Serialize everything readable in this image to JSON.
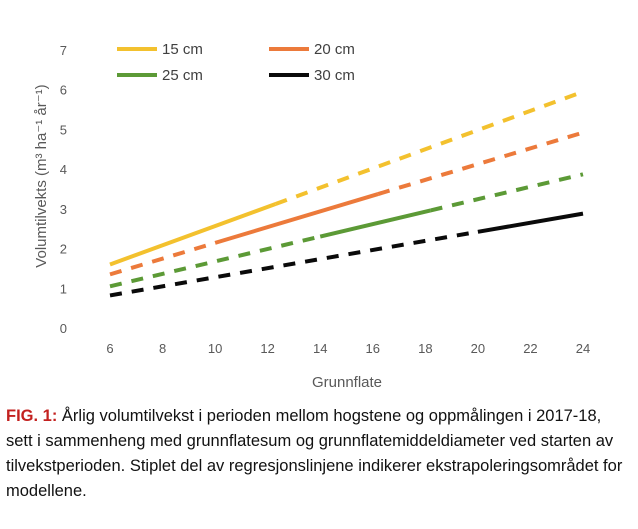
{
  "chart_data": {
    "type": "line",
    "xlabel": "Grunnflate",
    "ylabel": "Volumtilvekts (m³ ha⁻¹ år⁻¹)",
    "xlim": [
      6,
      24
    ],
    "ylim": [
      0,
      7
    ],
    "xticks": [
      6,
      8,
      10,
      12,
      14,
      16,
      18,
      20,
      22,
      24
    ],
    "yticks": [
      0,
      1,
      2,
      3,
      4,
      5,
      6,
      7
    ],
    "grid": false,
    "legend_position": "top",
    "series": [
      {
        "name": "15 cm",
        "color": "#f3c12e",
        "x": [
          6,
          24
        ],
        "y": [
          1.6,
          5.95
        ],
        "observed": [
          6,
          12.3
        ]
      },
      {
        "name": "20 cm",
        "color": "#ec7a3b",
        "x": [
          6,
          24
        ],
        "y": [
          1.35,
          4.92
        ],
        "observed": [
          10,
          16.2
        ]
      },
      {
        "name": "25 cm",
        "color": "#5c9a36",
        "x": [
          6,
          24
        ],
        "y": [
          1.05,
          3.87
        ],
        "observed": [
          14,
          18.2
        ]
      },
      {
        "name": "30 cm",
        "color": "#0a0a0a",
        "x": [
          6,
          24
        ],
        "y": [
          0.82,
          2.88
        ],
        "observed": [
          20,
          24
        ]
      }
    ]
  },
  "caption": {
    "label": "FIG. 1:",
    "text": " Årlig volumtilvekst i perioden mellom hogstene og oppmålingen i 2017-18, sett i sammenheng med grunnflatesum og grunnflatemiddeldiameter ved starten av tilvekstperioden. Stiplet del av regresjonslinjene indikerer ekstrapoleringsområdet for modellene."
  }
}
